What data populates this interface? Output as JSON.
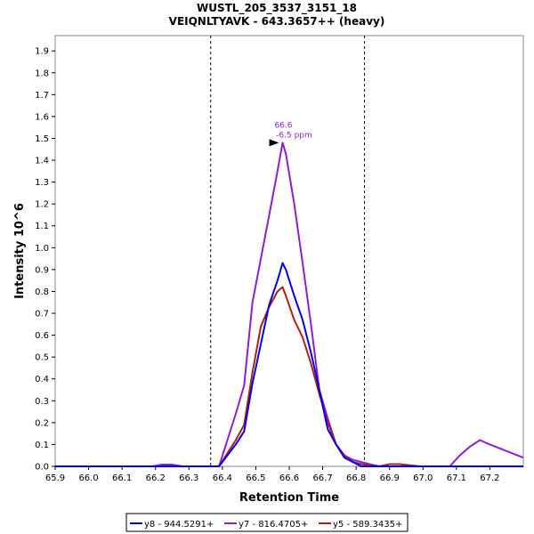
{
  "chart_data": {
    "type": "line",
    "title": "WUSTL_205_3537_3151_18",
    "subtitle": "VEIQNLTYAVK - 643.3657++ (heavy)",
    "xlabel": "Retention Time",
    "ylabel": "Intensity 10^6",
    "xlim": [
      65.9,
      67.3
    ],
    "ylim": [
      0.0,
      1.97
    ],
    "xticks": [
      65.9,
      66.0,
      66.1,
      66.2,
      66.3,
      66.4,
      66.5,
      66.6,
      66.7,
      66.8,
      66.9,
      67.0,
      67.1,
      67.2
    ],
    "xtick_labels": [
      "65.9",
      "66.0",
      "66.1",
      "66.2",
      "66.3",
      "66.4",
      "66.5",
      "66.6",
      "66.7",
      "66.8",
      "66.9",
      "67.0",
      "67.1",
      "67.2"
    ],
    "yticks": [
      0.0,
      0.1,
      0.2,
      0.3,
      0.4,
      0.5,
      0.6,
      0.7,
      0.8,
      0.9,
      1.0,
      1.1,
      1.2,
      1.3,
      1.4,
      1.5,
      1.6,
      1.7,
      1.8,
      1.9
    ],
    "ytick_labels": [
      "0.0",
      "0.1",
      "0.2",
      "0.3",
      "0.4",
      "0.5",
      "0.6",
      "0.7",
      "0.8",
      "0.9",
      "1.0",
      "1.1",
      "1.2",
      "1.3",
      "1.4",
      "1.5",
      "1.6",
      "1.7",
      "1.8",
      "1.9"
    ],
    "boundaries": [
      66.365,
      66.825
    ],
    "peak_annotation": {
      "x": 66.58,
      "y": 1.48,
      "line1": "66.6",
      "line2": "-6.5 ppm",
      "color": "#8b1fd6"
    },
    "series": [
      {
        "name": "y8 - 944.5291+",
        "color": "#0000ee",
        "x": [
          65.9,
          66.39,
          66.415,
          66.44,
          66.465,
          66.49,
          66.515,
          66.54,
          66.565,
          66.58,
          66.59,
          66.615,
          66.64,
          66.665,
          66.69,
          66.715,
          66.74,
          66.765,
          66.79,
          66.815,
          66.84,
          67.3
        ],
        "y": [
          0.0,
          0.0,
          0.05,
          0.1,
          0.16,
          0.38,
          0.56,
          0.74,
          0.85,
          0.93,
          0.9,
          0.78,
          0.67,
          0.52,
          0.35,
          0.17,
          0.1,
          0.04,
          0.02,
          0.0,
          0.0,
          0.0
        ]
      },
      {
        "name": "y7 - 816.4705+",
        "color": "#8b1fd6",
        "x": [
          65.9,
          66.19,
          66.22,
          66.25,
          66.28,
          66.39,
          66.415,
          66.44,
          66.465,
          66.49,
          66.515,
          66.54,
          66.565,
          66.58,
          66.59,
          66.615,
          66.64,
          66.665,
          66.69,
          66.715,
          66.74,
          66.765,
          66.79,
          66.815,
          66.84,
          66.87,
          66.9,
          66.95,
          67.0,
          67.08,
          67.11,
          67.14,
          67.17,
          67.2,
          67.25,
          67.3
        ],
        "y": [
          0.0,
          0.0,
          0.008,
          0.008,
          0.0,
          0.0,
          0.12,
          0.24,
          0.37,
          0.75,
          0.95,
          1.15,
          1.35,
          1.48,
          1.43,
          1.2,
          0.93,
          0.65,
          0.35,
          0.22,
          0.1,
          0.05,
          0.03,
          0.02,
          0.01,
          0.0,
          0.0,
          0.0,
          0.0,
          0.0,
          0.05,
          0.09,
          0.12,
          0.1,
          0.07,
          0.04
        ]
      },
      {
        "name": "y5 - 589.3435+",
        "color": "#aa2211",
        "x": [
          65.9,
          66.39,
          66.415,
          66.44,
          66.465,
          66.49,
          66.515,
          66.54,
          66.565,
          66.58,
          66.59,
          66.615,
          66.64,
          66.665,
          66.69,
          66.715,
          66.74,
          66.765,
          66.79,
          66.815,
          66.84,
          66.87,
          66.9,
          66.93,
          66.96,
          66.99,
          67.3
        ],
        "y": [
          0.0,
          0.0,
          0.06,
          0.12,
          0.19,
          0.43,
          0.64,
          0.73,
          0.8,
          0.82,
          0.78,
          0.67,
          0.59,
          0.47,
          0.33,
          0.2,
          0.1,
          0.05,
          0.02,
          0.01,
          0.005,
          0.0,
          0.01,
          0.01,
          0.005,
          0.0,
          0.0
        ]
      }
    ],
    "legend_position": "bottom-center"
  }
}
